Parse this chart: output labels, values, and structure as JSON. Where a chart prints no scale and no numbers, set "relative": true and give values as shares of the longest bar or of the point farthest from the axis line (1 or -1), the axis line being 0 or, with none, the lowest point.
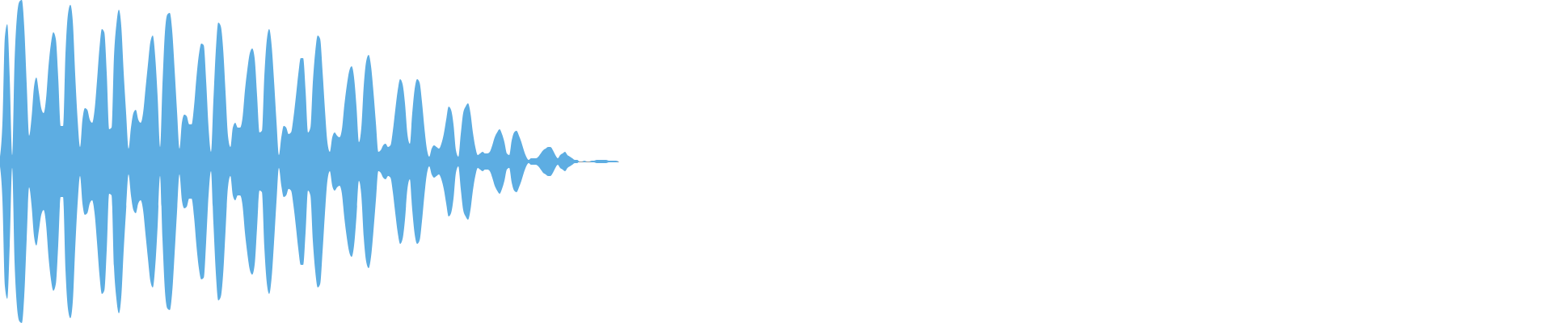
{
  "chart_data": {
    "type": "area",
    "relative": true,
    "categories": [
      null,
      null,
      null,
      null,
      null,
      null,
      null,
      null,
      null,
      null,
      null,
      null,
      null,
      null,
      null,
      null,
      null,
      null,
      null,
      null,
      null,
      null,
      null,
      null,
      null,
      null,
      null,
      null,
      null,
      null,
      null,
      null,
      null,
      null,
      null,
      null,
      null,
      null,
      null,
      null,
      null,
      null,
      null,
      null,
      null,
      null,
      null,
      null,
      null,
      null,
      null,
      null,
      null,
      null,
      null,
      null,
      null,
      null,
      null,
      null,
      null,
      null,
      null,
      null,
      null,
      null,
      null,
      null,
      null,
      null,
      null,
      null,
      null,
      null,
      null,
      null,
      null,
      null,
      null,
      null,
      null,
      null,
      null,
      null,
      null,
      null,
      null,
      null,
      null,
      null,
      null,
      null,
      null,
      null,
      null,
      null,
      null,
      null,
      null,
      null,
      null,
      null,
      null,
      null,
      null,
      null,
      null,
      null,
      null,
      null,
      null,
      null,
      null,
      null,
      null,
      null,
      null,
      null,
      null,
      null,
      null,
      null,
      null,
      null,
      null,
      null,
      null,
      null,
      null,
      null,
      null,
      null,
      null,
      null,
      null,
      null,
      null,
      null,
      null,
      null,
      null,
      null,
      null,
      null,
      null,
      null,
      null,
      null,
      null,
      null,
      null,
      null,
      null,
      null,
      null,
      null,
      null,
      null,
      null,
      null,
      null,
      null,
      null,
      null,
      null,
      null,
      null,
      null,
      null,
      null,
      null,
      null,
      null,
      null,
      null,
      null,
      null,
      null,
      null,
      null,
      null,
      null,
      null,
      null,
      null,
      null,
      null,
      null,
      null,
      null,
      null,
      null,
      null,
      null,
      null,
      null,
      null,
      null,
      null,
      null,
      null,
      null,
      null,
      null,
      null,
      null,
      null,
      null,
      null,
      null,
      null,
      null,
      null,
      null,
      null,
      null,
      null,
      null,
      null,
      null,
      null,
      null,
      null,
      null,
      null,
      null,
      null,
      null,
      null,
      null,
      null,
      null,
      null,
      null,
      null,
      null,
      null,
      null,
      null,
      null,
      null,
      null,
      null,
      null,
      null,
      null,
      null,
      null,
      null,
      null,
      null,
      null,
      null,
      null,
      null,
      null
    ],
    "series": [
      {
        "color": "#5dade2",
        "values": [
          0.03,
          0.24,
          0.77,
          0.85,
          0.52,
          0.04,
          0.62,
          0.9,
          0.99,
          1,
          0.83,
          0.48,
          0.16,
          0.27,
          0.46,
          0.52,
          0.43,
          0.33,
          0.3,
          0.39,
          0.59,
          0.73,
          0.8,
          0.76,
          0.52,
          0.22,
          0.22,
          0.67,
          0.91,
          0.97,
          0.87,
          0.54,
          0.26,
          0.09,
          0.26,
          0.33,
          0.32,
          0.26,
          0.24,
          0.32,
          0.5,
          0.7,
          0.82,
          0.8,
          0.55,
          0.2,
          0.21,
          0.65,
          0.85,
          0.94,
          0.84,
          0.55,
          0.3,
          0.08,
          0.21,
          0.3,
          0.32,
          0.26,
          0.24,
          0.3,
          0.45,
          0.6,
          0.74,
          0.78,
          0.65,
          0.4,
          0.09,
          0.48,
          0.8,
          0.91,
          0.92,
          0.81,
          0.57,
          0.31,
          0.08,
          0.24,
          0.29,
          0.28,
          0.23,
          0.23,
          0.34,
          0.52,
          0.66,
          0.73,
          0.72,
          0.5,
          0.21,
          0.06,
          0.38,
          0.69,
          0.86,
          0.84,
          0.7,
          0.43,
          0.16,
          0.09,
          0.21,
          0.24,
          0.21,
          0.21,
          0.27,
          0.44,
          0.57,
          0.67,
          0.7,
          0.64,
          0.41,
          0.18,
          0.19,
          0.53,
          0.75,
          0.82,
          0.72,
          0.5,
          0.25,
          0.04,
          0.15,
          0.22,
          0.21,
          0.17,
          0.18,
          0.27,
          0.4,
          0.54,
          0.64,
          0.64,
          0.44,
          0.18,
          0.21,
          0.49,
          0.68,
          0.78,
          0.76,
          0.56,
          0.32,
          0.12,
          0.06,
          0.15,
          0.18,
          0.16,
          0.15,
          0.2,
          0.35,
          0.47,
          0.56,
          0.59,
          0.52,
          0.34,
          0.12,
          0.21,
          0.47,
          0.62,
          0.66,
          0.59,
          0.43,
          0.24,
          0.06,
          0.07,
          0.1,
          0.11,
          0.09,
          0.1,
          0.19,
          0.32,
          0.44,
          0.51,
          0.48,
          0.36,
          0.17,
          0.11,
          0.3,
          0.45,
          0.51,
          0.49,
          0.37,
          0.21,
          0.08,
          0.03,
          0.08,
          0.1,
          0.09,
          0.08,
          0.11,
          0.17,
          0.26,
          0.34,
          0.32,
          0.23,
          0.07,
          0.03,
          0.17,
          0.3,
          0.34,
          0.36,
          0.3,
          0.18,
          0.09,
          0.04,
          0.05,
          0.06,
          0.05,
          0.05,
          0.06,
          0.1,
          0.15,
          0.18,
          0.2,
          0.17,
          0.12,
          0.05,
          0.04,
          0.13,
          0.18,
          0.19,
          0.16,
          0.12,
          0.07,
          0.03,
          0.01,
          0.02,
          0.02,
          0.02,
          0.03,
          0.05,
          0.07,
          0.08,
          0.09,
          0.09,
          0.07,
          0.04,
          0.02,
          0.04,
          0.05,
          0.06,
          0.04,
          0.03,
          0.02,
          0.01,
          0.01,
          0,
          0,
          0.005,
          0,
          0,
          0.005,
          0.005,
          0.01,
          0.01,
          0.01,
          0.01,
          0.01,
          0.005,
          0.005,
          0.005,
          0.005,
          0
        ]
      },
      {
        "color": "#5dade2",
        "values": [
          -0.03,
          -0.24,
          -0.77,
          -0.85,
          -0.52,
          -0.04,
          -0.62,
          -0.9,
          -0.99,
          -1,
          -0.83,
          -0.48,
          -0.16,
          -0.27,
          -0.46,
          -0.52,
          -0.43,
          -0.33,
          -0.3,
          -0.39,
          -0.59,
          -0.73,
          -0.8,
          -0.76,
          -0.52,
          -0.22,
          -0.22,
          -0.67,
          -0.91,
          -0.97,
          -0.87,
          -0.54,
          -0.26,
          -0.09,
          -0.26,
          -0.33,
          -0.32,
          -0.26,
          -0.24,
          -0.32,
          -0.5,
          -0.7,
          -0.82,
          -0.8,
          -0.55,
          -0.2,
          -0.21,
          -0.65,
          -0.85,
          -0.94,
          -0.84,
          -0.55,
          -0.3,
          -0.08,
          -0.21,
          -0.3,
          -0.32,
          -0.26,
          -0.24,
          -0.3,
          -0.45,
          -0.6,
          -0.74,
          -0.78,
          -0.65,
          -0.4,
          -0.09,
          -0.48,
          -0.8,
          -0.91,
          -0.92,
          -0.81,
          -0.57,
          -0.31,
          -0.08,
          -0.24,
          -0.29,
          -0.28,
          -0.23,
          -0.23,
          -0.34,
          -0.52,
          -0.66,
          -0.73,
          -0.72,
          -0.5,
          -0.21,
          -0.06,
          -0.38,
          -0.69,
          -0.86,
          -0.84,
          -0.7,
          -0.43,
          -0.16,
          -0.09,
          -0.21,
          -0.24,
          -0.21,
          -0.21,
          -0.27,
          -0.44,
          -0.57,
          -0.67,
          -0.7,
          -0.64,
          -0.41,
          -0.18,
          -0.19,
          -0.53,
          -0.75,
          -0.82,
          -0.72,
          -0.5,
          -0.25,
          -0.04,
          -0.15,
          -0.22,
          -0.21,
          -0.17,
          -0.18,
          -0.27,
          -0.4,
          -0.54,
          -0.64,
          -0.64,
          -0.44,
          -0.18,
          -0.21,
          -0.49,
          -0.68,
          -0.78,
          -0.76,
          -0.56,
          -0.32,
          -0.12,
          -0.06,
          -0.15,
          -0.18,
          -0.16,
          -0.15,
          -0.2,
          -0.35,
          -0.47,
          -0.56,
          -0.59,
          -0.52,
          -0.34,
          -0.12,
          -0.21,
          -0.47,
          -0.62,
          -0.66,
          -0.59,
          -0.43,
          -0.24,
          -0.06,
          -0.07,
          -0.1,
          -0.11,
          -0.09,
          -0.1,
          -0.19,
          -0.32,
          -0.44,
          -0.51,
          -0.48,
          -0.36,
          -0.17,
          -0.11,
          -0.3,
          -0.45,
          -0.51,
          -0.49,
          -0.37,
          -0.21,
          -0.08,
          -0.03,
          -0.08,
          -0.1,
          -0.09,
          -0.08,
          -0.11,
          -0.17,
          -0.26,
          -0.34,
          -0.32,
          -0.23,
          -0.07,
          -0.03,
          -0.17,
          -0.3,
          -0.34,
          -0.36,
          -0.3,
          -0.18,
          -0.09,
          -0.04,
          -0.05,
          -0.06,
          -0.05,
          -0.05,
          -0.06,
          -0.1,
          -0.15,
          -0.18,
          -0.2,
          -0.17,
          -0.12,
          -0.05,
          -0.04,
          -0.13,
          -0.18,
          -0.19,
          -0.16,
          -0.12,
          -0.07,
          -0.03,
          -0.01,
          -0.02,
          -0.02,
          -0.02,
          -0.03,
          -0.05,
          -0.07,
          -0.08,
          -0.09,
          -0.09,
          -0.07,
          -0.04,
          -0.02,
          -0.04,
          -0.05,
          -0.06,
          -0.04,
          -0.03,
          -0.02,
          -0.01,
          -0.01,
          0,
          0,
          -0.005,
          0,
          0,
          -0.005,
          -0.005,
          -0.01,
          -0.01,
          -0.01,
          -0.01,
          -0.01,
          -0.005,
          -0.005,
          -0.005,
          -0.005,
          0
        ]
      }
    ]
  }
}
